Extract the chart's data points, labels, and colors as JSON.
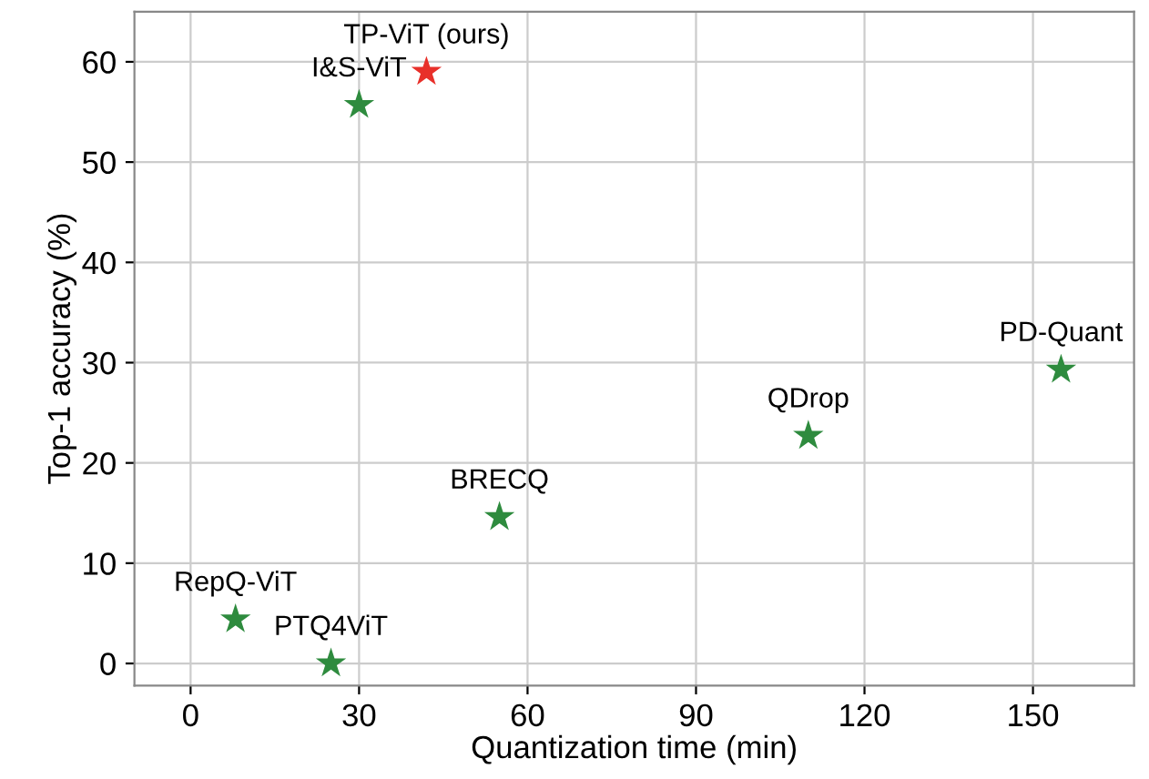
{
  "chart_data": {
    "type": "scatter",
    "xlabel": "Quantization time (min)",
    "ylabel": "Top-1 accuracy (%)",
    "series": [
      {
        "color": "#e8302a",
        "x": [
          42
        ],
        "values": [
          59.0
        ]
      },
      {
        "color": "#2e8b3e",
        "x": [
          30,
          8,
          25,
          55,
          110,
          155
        ],
        "values": [
          55.7,
          4.4,
          0,
          14.6,
          22.7,
          29.3
        ]
      }
    ],
    "annotations": [
      {
        "text": "TP-ViT (ours)",
        "x": 42,
        "y": 59.0
      },
      {
        "text": "I&S-ViT",
        "x": 30,
        "y": 55.7
      },
      {
        "text": "RepQ-ViT",
        "x": 8,
        "y": 4.4
      },
      {
        "text": "PTQ4ViT",
        "x": 25,
        "y": 0
      },
      {
        "text": "BRECQ",
        "x": 55,
        "y": 14.6
      },
      {
        "text": "QDrop",
        "x": 110,
        "y": 22.7
      },
      {
        "text": "PD-Quant",
        "x": 155,
        "y": 29.3
      }
    ],
    "marker": "star",
    "grid": true,
    "xlim": [
      -10,
      168
    ],
    "ylim": [
      -2.2,
      65
    ],
    "xticks": [
      0,
      30,
      60,
      90,
      120,
      150
    ],
    "yticks": [
      0,
      10,
      20,
      30,
      40,
      50,
      60
    ]
  }
}
